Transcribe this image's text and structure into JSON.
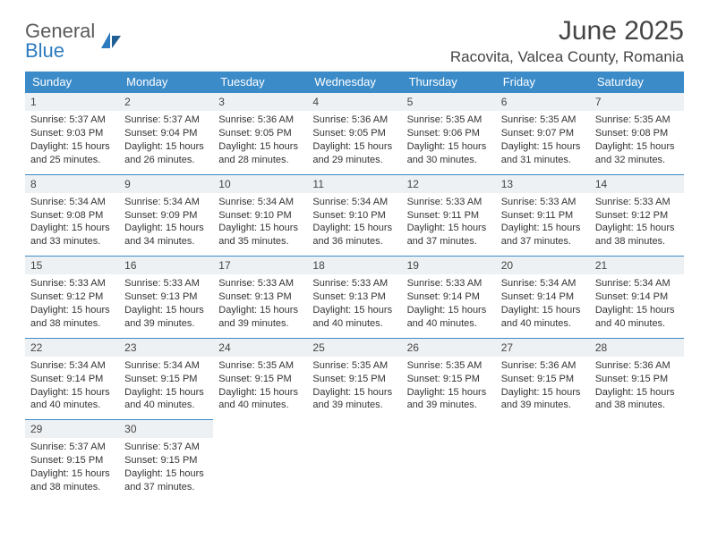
{
  "brand": {
    "name_gray": "General",
    "name_blue": "Blue"
  },
  "title": "June 2025",
  "location": "Racovita, Valcea County, Romania",
  "weekday_labels": [
    "Sunday",
    "Monday",
    "Tuesday",
    "Wednesday",
    "Thursday",
    "Friday",
    "Saturday"
  ],
  "colors": {
    "header_bg": "#3b8bc9",
    "header_fg": "#ffffff",
    "border": "#3b8bc9",
    "daynum_bg": "#eef1f3",
    "brand_gray": "#5a5a5a",
    "brand_blue": "#2c7bbf",
    "text": "#333333",
    "background": "#ffffff"
  },
  "days": [
    {
      "n": "1",
      "sunrise": "5:37 AM",
      "sunset": "9:03 PM",
      "daylight": "15 hours and 25 minutes."
    },
    {
      "n": "2",
      "sunrise": "5:37 AM",
      "sunset": "9:04 PM",
      "daylight": "15 hours and 26 minutes."
    },
    {
      "n": "3",
      "sunrise": "5:36 AM",
      "sunset": "9:05 PM",
      "daylight": "15 hours and 28 minutes."
    },
    {
      "n": "4",
      "sunrise": "5:36 AM",
      "sunset": "9:05 PM",
      "daylight": "15 hours and 29 minutes."
    },
    {
      "n": "5",
      "sunrise": "5:35 AM",
      "sunset": "9:06 PM",
      "daylight": "15 hours and 30 minutes."
    },
    {
      "n": "6",
      "sunrise": "5:35 AM",
      "sunset": "9:07 PM",
      "daylight": "15 hours and 31 minutes."
    },
    {
      "n": "7",
      "sunrise": "5:35 AM",
      "sunset": "9:08 PM",
      "daylight": "15 hours and 32 minutes."
    },
    {
      "n": "8",
      "sunrise": "5:34 AM",
      "sunset": "9:08 PM",
      "daylight": "15 hours and 33 minutes."
    },
    {
      "n": "9",
      "sunrise": "5:34 AM",
      "sunset": "9:09 PM",
      "daylight": "15 hours and 34 minutes."
    },
    {
      "n": "10",
      "sunrise": "5:34 AM",
      "sunset": "9:10 PM",
      "daylight": "15 hours and 35 minutes."
    },
    {
      "n": "11",
      "sunrise": "5:34 AM",
      "sunset": "9:10 PM",
      "daylight": "15 hours and 36 minutes."
    },
    {
      "n": "12",
      "sunrise": "5:33 AM",
      "sunset": "9:11 PM",
      "daylight": "15 hours and 37 minutes."
    },
    {
      "n": "13",
      "sunrise": "5:33 AM",
      "sunset": "9:11 PM",
      "daylight": "15 hours and 37 minutes."
    },
    {
      "n": "14",
      "sunrise": "5:33 AM",
      "sunset": "9:12 PM",
      "daylight": "15 hours and 38 minutes."
    },
    {
      "n": "15",
      "sunrise": "5:33 AM",
      "sunset": "9:12 PM",
      "daylight": "15 hours and 38 minutes."
    },
    {
      "n": "16",
      "sunrise": "5:33 AM",
      "sunset": "9:13 PM",
      "daylight": "15 hours and 39 minutes."
    },
    {
      "n": "17",
      "sunrise": "5:33 AM",
      "sunset": "9:13 PM",
      "daylight": "15 hours and 39 minutes."
    },
    {
      "n": "18",
      "sunrise": "5:33 AM",
      "sunset": "9:13 PM",
      "daylight": "15 hours and 40 minutes."
    },
    {
      "n": "19",
      "sunrise": "5:33 AM",
      "sunset": "9:14 PM",
      "daylight": "15 hours and 40 minutes."
    },
    {
      "n": "20",
      "sunrise": "5:34 AM",
      "sunset": "9:14 PM",
      "daylight": "15 hours and 40 minutes."
    },
    {
      "n": "21",
      "sunrise": "5:34 AM",
      "sunset": "9:14 PM",
      "daylight": "15 hours and 40 minutes."
    },
    {
      "n": "22",
      "sunrise": "5:34 AM",
      "sunset": "9:14 PM",
      "daylight": "15 hours and 40 minutes."
    },
    {
      "n": "23",
      "sunrise": "5:34 AM",
      "sunset": "9:15 PM",
      "daylight": "15 hours and 40 minutes."
    },
    {
      "n": "24",
      "sunrise": "5:35 AM",
      "sunset": "9:15 PM",
      "daylight": "15 hours and 40 minutes."
    },
    {
      "n": "25",
      "sunrise": "5:35 AM",
      "sunset": "9:15 PM",
      "daylight": "15 hours and 39 minutes."
    },
    {
      "n": "26",
      "sunrise": "5:35 AM",
      "sunset": "9:15 PM",
      "daylight": "15 hours and 39 minutes."
    },
    {
      "n": "27",
      "sunrise": "5:36 AM",
      "sunset": "9:15 PM",
      "daylight": "15 hours and 39 minutes."
    },
    {
      "n": "28",
      "sunrise": "5:36 AM",
      "sunset": "9:15 PM",
      "daylight": "15 hours and 38 minutes."
    },
    {
      "n": "29",
      "sunrise": "5:37 AM",
      "sunset": "9:15 PM",
      "daylight": "15 hours and 38 minutes."
    },
    {
      "n": "30",
      "sunrise": "5:37 AM",
      "sunset": "9:15 PM",
      "daylight": "15 hours and 37 minutes."
    }
  ],
  "labels": {
    "sunrise_prefix": "Sunrise: ",
    "sunset_prefix": "Sunset: ",
    "daylight_prefix": "Daylight: "
  }
}
